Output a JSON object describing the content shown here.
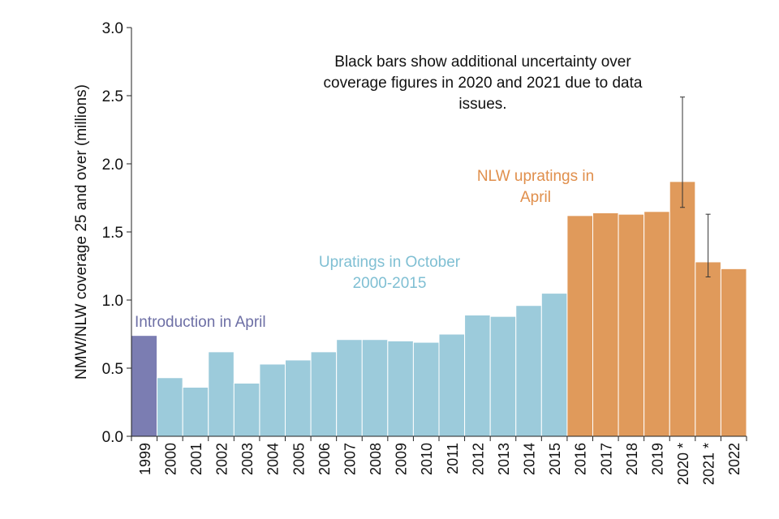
{
  "chart_data": {
    "type": "bar",
    "title": "",
    "xlabel": "",
    "ylabel": "NMW/NLW coverage 25 and over (millions)",
    "ylim": [
      0,
      3.0
    ],
    "yticks": [
      "0.0",
      "0.5",
      "1.0",
      "1.5",
      "2.0",
      "2.5",
      "3.0"
    ],
    "ytick_values": [
      0,
      0.5,
      1.0,
      1.5,
      2.0,
      2.5,
      3.0
    ],
    "grid": false,
    "categories": [
      "1999",
      "2000",
      "2001",
      "2002",
      "2003",
      "2004",
      "2005",
      "2006",
      "2007",
      "2008",
      "2009",
      "2010",
      "2011",
      "2012",
      "2013",
      "2014",
      "2015",
      "2016",
      "2017",
      "2018",
      "2019",
      "2020 *",
      "2021 *",
      "2022"
    ],
    "values": [
      0.74,
      0.43,
      0.36,
      0.62,
      0.39,
      0.53,
      0.56,
      0.62,
      0.71,
      0.71,
      0.7,
      0.69,
      0.75,
      0.89,
      0.88,
      0.96,
      1.05,
      1.62,
      1.64,
      1.63,
      1.65,
      1.87,
      1.28,
      1.23
    ],
    "groups": [
      "intro",
      "oct",
      "oct",
      "oct",
      "oct",
      "oct",
      "oct",
      "oct",
      "oct",
      "oct",
      "oct",
      "oct",
      "oct",
      "oct",
      "oct",
      "oct",
      "oct",
      "apr",
      "apr",
      "apr",
      "apr",
      "apr",
      "apr",
      "apr"
    ],
    "colors": {
      "intro": "#7b7db2",
      "oct": "#9ccbdb",
      "apr": "#e09a5b",
      "axis": "#222222",
      "errorbar": "#333333"
    },
    "error_bars": [
      {
        "category": "2020 *",
        "low": 1.68,
        "high": 2.49
      },
      {
        "category": "2021 *",
        "low": 1.17,
        "high": 1.63
      }
    ],
    "annotations": {
      "note": [
        "Black bars show additional uncertainty over",
        "coverage figures in 2020 and 2021 due to data",
        "issues."
      ],
      "intro_label": [
        "Introduction in April"
      ],
      "oct_label": [
        "Upratings in October",
        "2000-2015"
      ],
      "apr_label": [
        "NLW upratings in",
        "April"
      ]
    },
    "annotation_colors": {
      "note": "#111111",
      "intro_label": "#6d6fa5",
      "oct_label": "#7fbfd3",
      "apr_label": "#e08f4c"
    }
  }
}
